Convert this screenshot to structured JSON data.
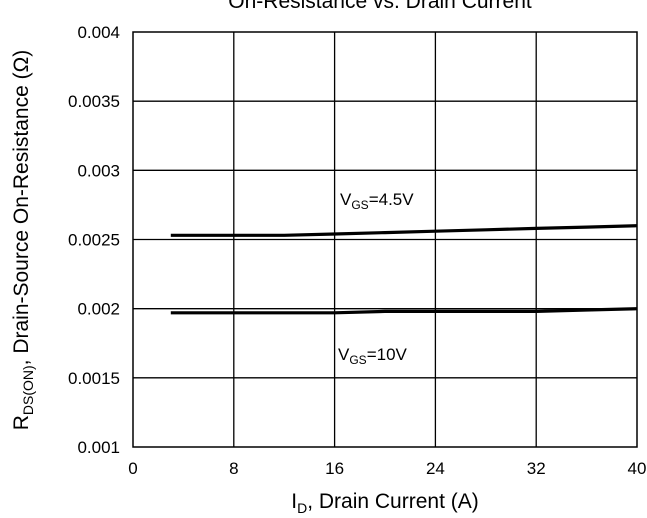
{
  "chart_data": {
    "type": "line",
    "title": "On-Resistance vs. Drain Current",
    "xlabel": {
      "main": "I",
      "sub": "D",
      "rest": ", Drain Current (A)"
    },
    "ylabel": {
      "main": "R",
      "sub": "DS(ON)",
      "rest": ", Drain-Source On-Resistance (Ω)"
    },
    "xlim": [
      0,
      40
    ],
    "ylim": [
      0.001,
      0.004
    ],
    "x_ticks": [
      0,
      8,
      16,
      24,
      32,
      40
    ],
    "x_tick_labels": [
      "0",
      "8",
      "16",
      "24",
      "32",
      "40"
    ],
    "y_ticks": [
      0.001,
      0.0015,
      0.002,
      0.0025,
      0.003,
      0.0035,
      0.004
    ],
    "y_tick_labels": [
      "0.001",
      "0.0015",
      "0.002",
      "0.0025",
      "0.003",
      "0.0035",
      "0.004"
    ],
    "grid": true,
    "line_color": "#000000",
    "series": [
      {
        "name": "VGS=4.5V",
        "label": {
          "main": "V",
          "sub": "GS",
          "rest": "=4.5V"
        },
        "x": [
          3,
          8,
          12,
          16,
          20,
          24,
          28,
          32,
          36,
          40
        ],
        "y": [
          0.00253,
          0.00253,
          0.00253,
          0.00254,
          0.00255,
          0.00256,
          0.00257,
          0.00258,
          0.00259,
          0.0026
        ]
      },
      {
        "name": "VGS=10V",
        "label": {
          "main": "V",
          "sub": "GS",
          "rest": "=10V"
        },
        "x": [
          3,
          8,
          12,
          16,
          20,
          24,
          28,
          32,
          36,
          40
        ],
        "y": [
          0.00197,
          0.00197,
          0.00197,
          0.00197,
          0.00198,
          0.00198,
          0.00198,
          0.00198,
          0.00199,
          0.002
        ]
      }
    ]
  }
}
